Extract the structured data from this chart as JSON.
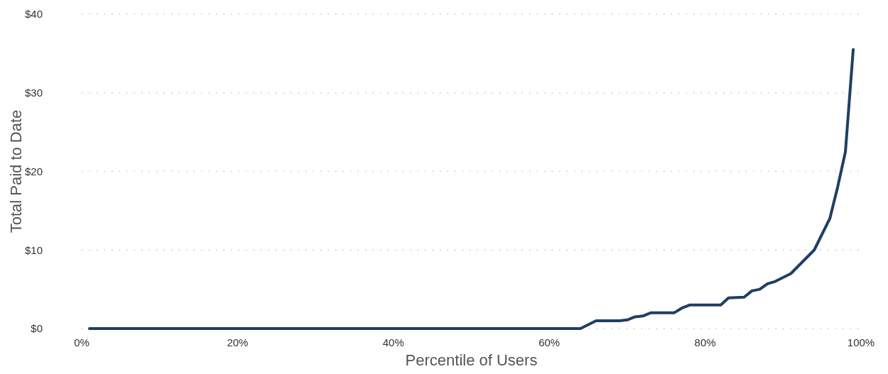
{
  "chart_data": {
    "type": "line",
    "xlabel": "Percentile of Users",
    "ylabel": "Total Paid to Date",
    "xlim": [
      0,
      100
    ],
    "xticks": [
      {
        "value": 0,
        "label": "0%"
      },
      {
        "value": 20,
        "label": "20%"
      },
      {
        "value": 40,
        "label": "40%"
      },
      {
        "value": 60,
        "label": "60%"
      },
      {
        "value": 80,
        "label": "80%"
      },
      {
        "value": 100,
        "label": "100%"
      }
    ],
    "ylim": [
      0,
      40
    ],
    "yticks": [
      {
        "value": 0,
        "label": "$0"
      },
      {
        "value": 10,
        "label": "$10"
      },
      {
        "value": 20,
        "label": "$20"
      },
      {
        "value": 30,
        "label": "$30"
      },
      {
        "value": 40,
        "label": "$40"
      }
    ],
    "grid": "y",
    "line_style": "solid",
    "series": [
      {
        "color": "#1f3f63",
        "x": [
          1,
          64,
          66,
          69,
          70,
          71,
          72,
          73,
          76,
          77,
          78,
          82,
          83,
          85,
          86,
          87,
          88,
          89,
          91,
          94,
          96,
          97,
          98,
          99
        ],
        "values": [
          0,
          0,
          1,
          1,
          1.1,
          1.5,
          1.6,
          2,
          2,
          2.6,
          3,
          3,
          3.9,
          4,
          4.8,
          5,
          5.7,
          6,
          7,
          10,
          14,
          18,
          22.5,
          35.5
        ]
      }
    ]
  }
}
